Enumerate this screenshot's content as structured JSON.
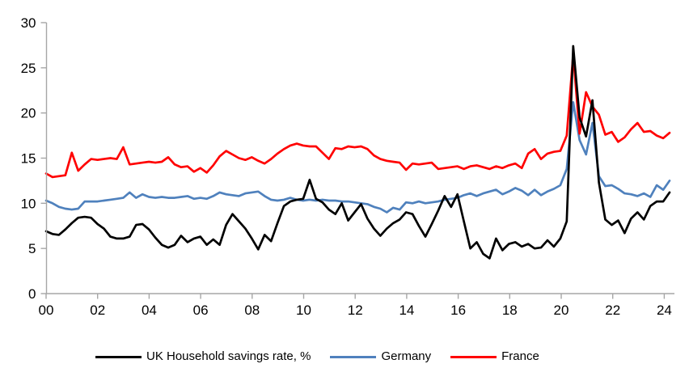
{
  "page": {
    "background": "#FFFFFF"
  },
  "chart_data": {
    "type": "line",
    "title": "",
    "frequency": "quarterly",
    "x_start": "2000Q1",
    "x_end": "2024Q2",
    "points_per_series": 98,
    "x_tick_labels": [
      "00",
      "02",
      "04",
      "06",
      "08",
      "10",
      "12",
      "14",
      "16",
      "18",
      "20",
      "22",
      "24"
    ],
    "y_tick_labels": [
      "0",
      "5",
      "10",
      "15",
      "20",
      "25",
      "30"
    ],
    "ylim": [
      0,
      30
    ],
    "grid": false,
    "legend_position": "bottom",
    "axis_color": "#A6A6A6",
    "series": [
      {
        "name": "UK Household savings rate, %",
        "color": "#000000",
        "values": [
          6.9,
          6.6,
          6.5,
          7.1,
          7.8,
          8.4,
          8.5,
          8.4,
          7.7,
          7.2,
          6.3,
          6.1,
          6.1,
          6.3,
          7.6,
          7.7,
          7.1,
          6.2,
          5.4,
          5.1,
          5.4,
          6.4,
          5.7,
          6.1,
          6.3,
          5.4,
          6.0,
          5.4,
          7.6,
          8.8,
          8.0,
          7.2,
          6.1,
          4.9,
          6.5,
          5.8,
          7.8,
          9.7,
          10.2,
          10.4,
          10.5,
          12.6,
          10.5,
          10.1,
          9.3,
          8.8,
          10.0,
          8.1,
          9.0,
          9.9,
          8.3,
          7.2,
          6.4,
          7.2,
          7.8,
          8.2,
          9.0,
          8.8,
          7.5,
          6.3,
          7.7,
          9.2,
          10.8,
          9.6,
          11.0,
          8.0,
          5.0,
          5.7,
          4.4,
          3.9,
          6.1,
          4.8,
          5.5,
          5.7,
          5.2,
          5.5,
          5.0,
          5.1,
          5.9,
          5.2,
          6.1,
          8.0,
          27.4,
          19.5,
          17.4,
          21.4,
          12.3,
          8.2,
          7.6,
          8.1,
          6.7,
          8.3,
          9.0,
          8.2,
          9.7,
          10.2,
          10.2,
          11.2
        ]
      },
      {
        "name": "Germany",
        "color": "#4F81BD",
        "values": [
          10.3,
          10.0,
          9.6,
          9.4,
          9.3,
          9.4,
          10.2,
          10.2,
          10.2,
          10.3,
          10.4,
          10.5,
          10.6,
          11.2,
          10.6,
          11.0,
          10.7,
          10.6,
          10.7,
          10.6,
          10.6,
          10.7,
          10.8,
          10.5,
          10.6,
          10.5,
          10.8,
          11.2,
          11.0,
          10.9,
          10.8,
          11.1,
          11.2,
          11.3,
          10.8,
          10.4,
          10.3,
          10.4,
          10.6,
          10.4,
          10.3,
          10.4,
          10.3,
          10.4,
          10.3,
          10.3,
          10.2,
          10.2,
          10.1,
          10.0,
          9.9,
          9.6,
          9.4,
          9.0,
          9.5,
          9.3,
          10.1,
          10.0,
          10.2,
          10.0,
          10.1,
          10.2,
          10.4,
          10.5,
          10.6,
          10.9,
          11.1,
          10.8,
          11.1,
          11.3,
          11.5,
          11.0,
          11.3,
          11.7,
          11.4,
          10.9,
          11.5,
          10.9,
          11.3,
          11.6,
          12.0,
          13.8,
          21.2,
          17.0,
          15.4,
          18.9,
          13.0,
          11.9,
          12.0,
          11.6,
          11.1,
          11.0,
          10.8,
          11.1,
          10.7,
          12.0,
          11.5,
          12.5
        ]
      },
      {
        "name": "France",
        "color": "#FF0000",
        "values": [
          13.3,
          12.9,
          13.0,
          13.1,
          15.6,
          13.6,
          14.3,
          14.9,
          14.8,
          14.9,
          15.0,
          14.9,
          16.2,
          14.3,
          14.4,
          14.5,
          14.6,
          14.5,
          14.6,
          15.1,
          14.3,
          14.0,
          14.1,
          13.5,
          13.9,
          13.4,
          14.2,
          15.2,
          15.8,
          15.4,
          15.0,
          14.8,
          15.1,
          14.7,
          14.4,
          14.9,
          15.5,
          16.0,
          16.4,
          16.6,
          16.4,
          16.3,
          16.3,
          15.6,
          14.9,
          16.1,
          16.0,
          16.3,
          16.2,
          16.3,
          16.0,
          15.3,
          14.9,
          14.7,
          14.6,
          14.5,
          13.7,
          14.4,
          14.3,
          14.4,
          14.5,
          13.8,
          13.9,
          14.0,
          14.1,
          13.8,
          14.1,
          14.2,
          14.0,
          13.8,
          14.1,
          13.9,
          14.2,
          14.4,
          13.9,
          15.5,
          16.0,
          14.9,
          15.5,
          15.7,
          15.8,
          17.5,
          26.5,
          17.7,
          22.3,
          20.7,
          19.8,
          17.6,
          17.9,
          16.8,
          17.3,
          18.2,
          18.9,
          17.9,
          18.0,
          17.5,
          17.2,
          17.8
        ]
      }
    ]
  }
}
